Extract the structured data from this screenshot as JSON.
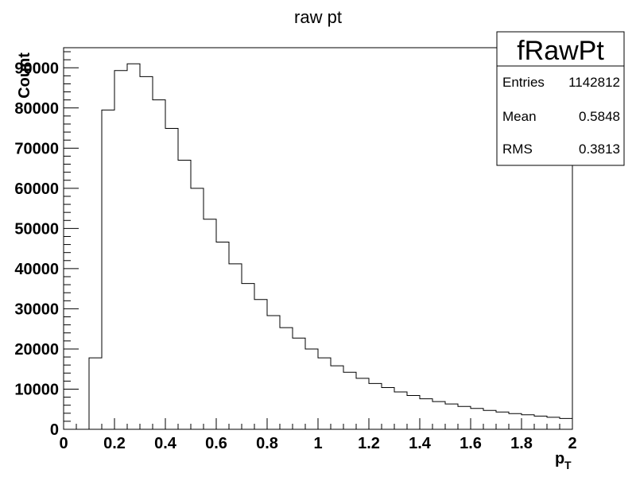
{
  "chart_data": {
    "type": "bar",
    "title": "raw pt",
    "xlabel": "p",
    "xlabel_sub": "T",
    "ylabel": "Count",
    "xlim": [
      0,
      2
    ],
    "ylim": [
      0,
      95000
    ],
    "xticks": [
      "0",
      "0.2",
      "0.4",
      "0.6",
      "0.8",
      "1",
      "1.2",
      "1.4",
      "1.6",
      "1.8",
      "2"
    ],
    "yticks": [
      "0",
      "10000",
      "20000",
      "30000",
      "40000",
      "50000",
      "60000",
      "70000",
      "80000",
      "90000"
    ],
    "grid": false,
    "bin_width": 0.05,
    "bins_x": [
      0.0,
      0.05,
      0.1,
      0.15,
      0.2,
      0.25,
      0.3,
      0.35,
      0.4,
      0.45,
      0.5,
      0.55,
      0.6,
      0.65,
      0.7,
      0.75,
      0.8,
      0.85,
      0.9,
      0.95,
      1.0,
      1.05,
      1.1,
      1.15,
      1.2,
      1.25,
      1.3,
      1.35,
      1.4,
      1.45,
      1.5,
      1.55,
      1.6,
      1.65,
      1.7,
      1.75,
      1.8,
      1.85,
      1.9,
      1.95
    ],
    "values": [
      0,
      0,
      17800,
      79500,
      89300,
      91000,
      87800,
      82000,
      74900,
      67000,
      60000,
      52300,
      46600,
      41200,
      36300,
      32300,
      28300,
      25300,
      22700,
      20000,
      17800,
      15800,
      14200,
      12700,
      11400,
      10400,
      9300,
      8400,
      7600,
      6900,
      6300,
      5700,
      5200,
      4700,
      4300,
      3900,
      3600,
      3300,
      3000,
      2700
    ],
    "stats": {
      "name": "fRawPt",
      "entries_label": "Entries",
      "entries": "1142812",
      "mean_label": "Mean",
      "mean": "0.5848",
      "rms_label": "RMS",
      "rms": "0.3813"
    }
  }
}
